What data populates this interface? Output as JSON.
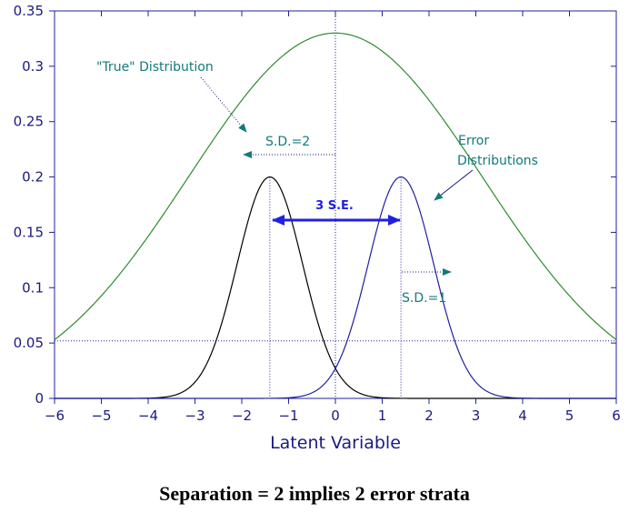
{
  "caption": "Separation = 2 implies 2 error strata",
  "chart_data": {
    "type": "line",
    "xlabel": "Latent Variable",
    "ylabel": "",
    "xlim": [
      -6,
      6
    ],
    "ylim": [
      0,
      0.35
    ],
    "x_ticks": [
      -6,
      -5,
      -4,
      -3,
      -2,
      -1,
      0,
      1,
      2,
      3,
      4,
      5,
      6
    ],
    "y_ticks": [
      0,
      0.05,
      0.1,
      0.15,
      0.2,
      0.25,
      0.3,
      0.35
    ],
    "y_tick_labels": [
      "0",
      "0.05",
      "0.1",
      "0.15",
      "0.2",
      "0.25",
      "0.3",
      "0.35"
    ],
    "grid": false,
    "series": [
      {
        "name": "\"True\" Distribution",
        "color": "#2e8b2e",
        "peak_x": 0,
        "peak_y": 0.33,
        "tail_y_at_pm6": 0.053
      },
      {
        "name": "",
        "color": "#000000",
        "peak_x": -1.4,
        "peak_y": 0.2,
        "sd": 0.7
      },
      {
        "name": "",
        "color": "#2020a0",
        "peak_x": 1.4,
        "peak_y": 0.2,
        "sd": 0.7
      }
    ],
    "reference_lines": [
      {
        "kind": "vertical",
        "x": 0
      },
      {
        "kind": "vertical",
        "x": -1.4
      },
      {
        "kind": "vertical",
        "x": 1.4
      },
      {
        "kind": "horizontal",
        "y": 0.052
      }
    ],
    "annotations": {
      "true_dist": "\"True\" Distribution",
      "sd2": "S.D.=2",
      "error_line1": "Error",
      "error_line2": "Distributions",
      "se": "3 S.E.",
      "sd1": "S.D.=1"
    }
  }
}
